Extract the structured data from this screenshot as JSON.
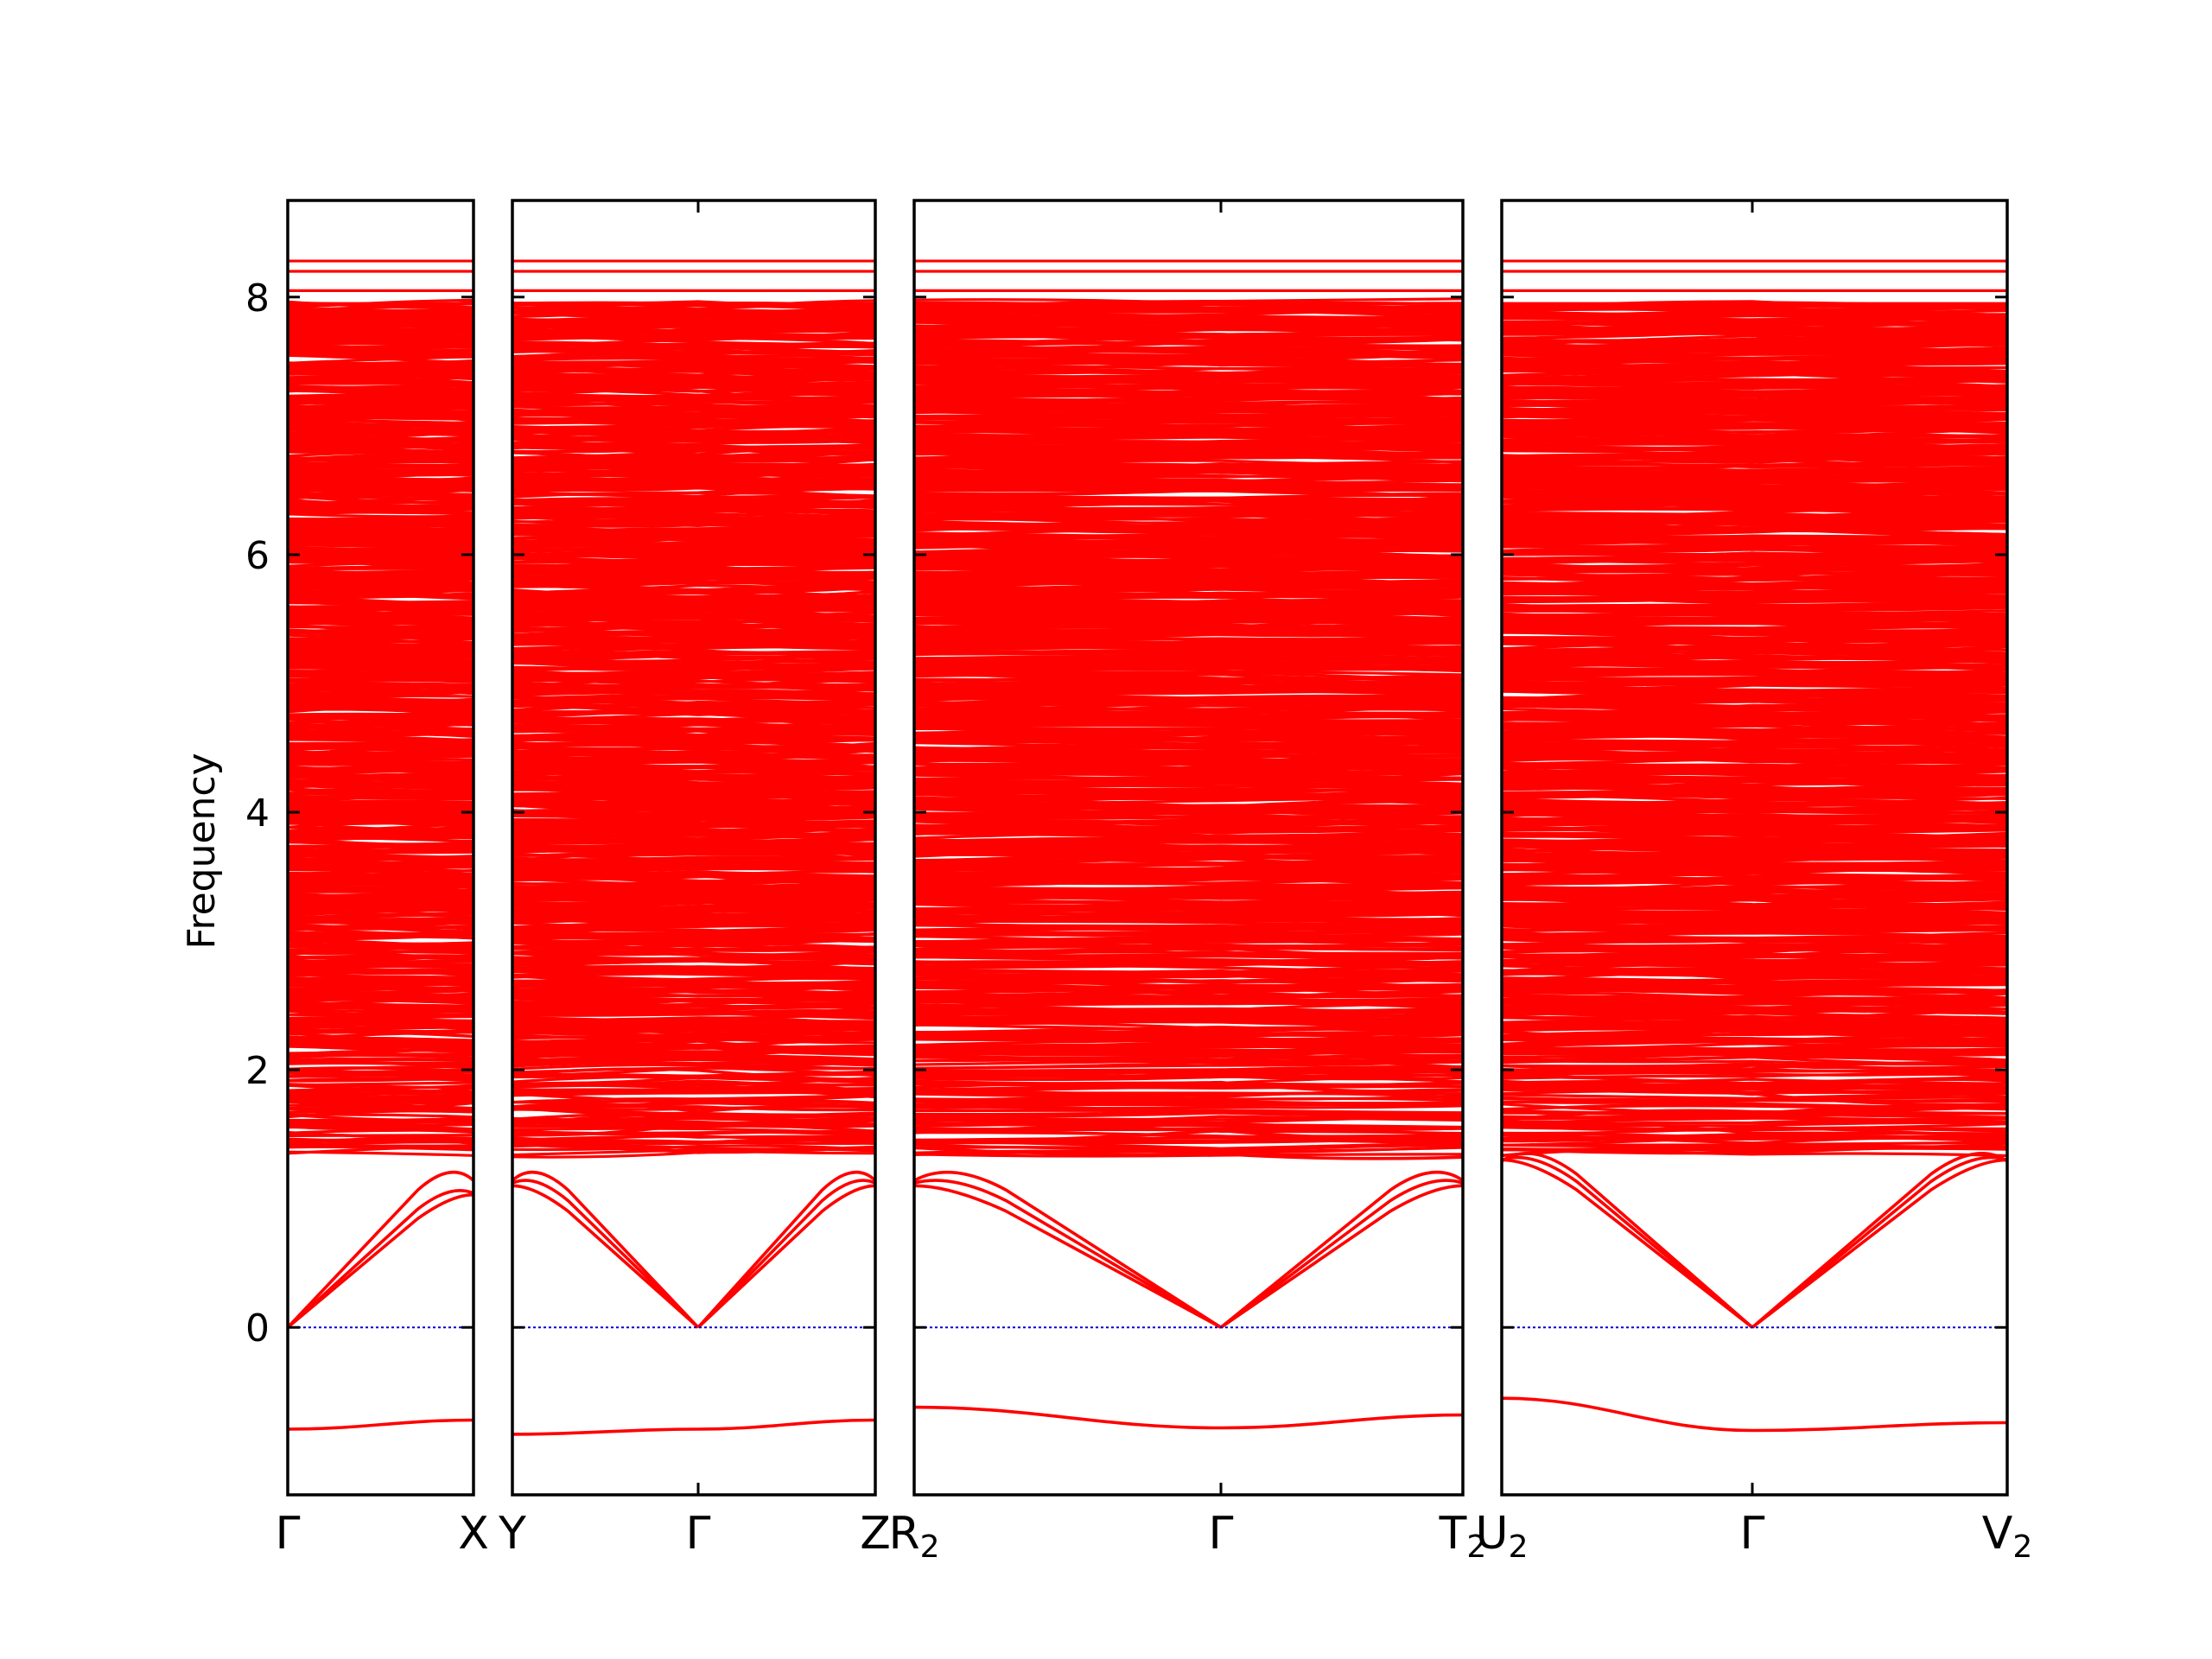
{
  "chart_data": {
    "type": "line",
    "title": "",
    "xlabel": "",
    "ylabel": "Frequency",
    "ylim": [
      -1.3,
      8.75
    ],
    "yticks": [
      0,
      2,
      4,
      6,
      8
    ],
    "grid": false,
    "colors": {
      "bands": "#ff0000",
      "zero_line": "#0000cc",
      "frame": "#000000"
    },
    "panels": [
      {
        "name": "Γ-X",
        "k_labels": [
          {
            "main": "Γ",
            "sub": ""
          },
          {
            "main": "X",
            "sub": ""
          }
        ],
        "series_summary": {
          "imaginary_mode": [
            -0.79,
            -0.72
          ],
          "acoustic_top_at_end": [
            1.03,
            1.12,
            1.3
          ],
          "dense_band_range": [
            1.35,
            8.28
          ]
        }
      },
      {
        "name": "Y-Γ-Z",
        "k_labels": [
          {
            "main": "Y",
            "sub": ""
          },
          {
            "main": "Γ",
            "sub": ""
          },
          {
            "main": "Z",
            "sub": ""
          }
        ],
        "series_summary": {
          "imaginary_mode": [
            -0.83,
            -0.79,
            -0.72
          ],
          "acoustic_at_ends": [
            1.1,
            1.3
          ],
          "dense_band_range": [
            1.35,
            8.28
          ]
        }
      },
      {
        "name": "R2-Γ-T2",
        "k_labels": [
          {
            "main": "R",
            "sub": "2"
          },
          {
            "main": "Γ",
            "sub": ""
          },
          {
            "main": "T",
            "sub": "2"
          }
        ],
        "series_summary": {
          "imaginary_mode": [
            -0.62,
            -0.78,
            -0.68
          ],
          "acoustic_at_ends": [
            1.15,
            1.3
          ],
          "dense_band_range": [
            1.35,
            8.28
          ]
        }
      },
      {
        "name": "U2-Γ-V2",
        "k_labels": [
          {
            "main": "U",
            "sub": "2"
          },
          {
            "main": "Γ",
            "sub": ""
          },
          {
            "main": "V",
            "sub": "2"
          }
        ],
        "series_summary": {
          "imaginary_mode": [
            -0.55,
            -0.8,
            -0.74
          ],
          "acoustic_at_ends": [
            1.2,
            1.3,
            1.45
          ],
          "dense_band_range": [
            1.35,
            8.28
          ]
        }
      }
    ]
  }
}
